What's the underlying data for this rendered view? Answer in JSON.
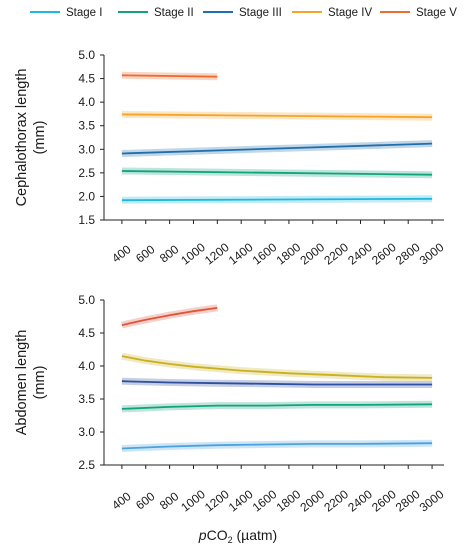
{
  "legend": [
    {
      "label": "Stage I",
      "color": "#1fb7e0"
    },
    {
      "label": "Stage II",
      "color": "#12a37d"
    },
    {
      "label": "Stage III",
      "color": "#1f6fae"
    },
    {
      "label": "Stage IV",
      "color": "#f4a428"
    },
    {
      "label": "Stage V",
      "color": "#ee6a2f"
    }
  ],
  "x_axis": {
    "label_prefix": "p",
    "label_main": "CO",
    "label_sub": "2",
    "label_unit": " (µatm)"
  },
  "chart_data": [
    {
      "type": "line",
      "ylabel": "Cephalothorax length (mm)",
      "ylabel_lines": [
        "Cephalothorax length",
        "(mm)"
      ],
      "ylim": [
        1.5,
        5.0
      ],
      "yticks": [
        "1.5",
        "2.0",
        "2.5",
        "3.0",
        "3.5",
        "4.0",
        "4.5",
        "5.0"
      ],
      "xlim": [
        250,
        3100
      ],
      "xticks": [
        "400",
        "600",
        "800",
        "1000",
        "1200",
        "1400",
        "1600",
        "1800",
        "2000",
        "2200",
        "2400",
        "2600",
        "2800",
        "3000"
      ],
      "series": [
        {
          "name": "Stage I",
          "color": "#1fb7e0",
          "x": [
            400,
            3000
          ],
          "y": [
            1.92,
            1.95
          ]
        },
        {
          "name": "Stage II",
          "color": "#12a37d",
          "x": [
            400,
            3000
          ],
          "y": [
            2.54,
            2.46
          ]
        },
        {
          "name": "Stage III",
          "color": "#1f6fae",
          "x": [
            400,
            3000
          ],
          "y": [
            2.91,
            3.12
          ]
        },
        {
          "name": "Stage IV",
          "color": "#f4a428",
          "x": [
            400,
            3000
          ],
          "y": [
            3.74,
            3.68
          ]
        },
        {
          "name": "Stage V",
          "color": "#ee6a2f",
          "x": [
            400,
            1200
          ],
          "y": [
            4.57,
            4.54
          ]
        }
      ]
    },
    {
      "type": "line",
      "ylabel": "Abdomen length (mm)",
      "ylabel_lines": [
        "Abdomen length",
        "(mm)"
      ],
      "ylim": [
        2.5,
        5.0
      ],
      "yticks": [
        "2.5",
        "3.0",
        "3.5",
        "4.0",
        "4.5",
        "5.0"
      ],
      "xlim": [
        250,
        3100
      ],
      "xticks": [
        "400",
        "600",
        "800",
        "1000",
        "1200",
        "1400",
        "1600",
        "1800",
        "2000",
        "2200",
        "2400",
        "2600",
        "2800",
        "3000"
      ],
      "series": [
        {
          "name": "Stage I",
          "color": "#4aa3df",
          "x": [
            400,
            800,
            1200,
            1600,
            2000,
            2400,
            3000
          ],
          "y": [
            2.75,
            2.78,
            2.8,
            2.81,
            2.82,
            2.82,
            2.83
          ]
        },
        {
          "name": "Stage II",
          "color": "#12a37d",
          "x": [
            400,
            800,
            1200,
            1600,
            2000,
            2400,
            3000
          ],
          "y": [
            3.35,
            3.38,
            3.4,
            3.4,
            3.41,
            3.41,
            3.42
          ]
        },
        {
          "name": "Stage III",
          "color": "#2d4f9e",
          "x": [
            400,
            800,
            1200,
            1600,
            2000,
            2400,
            3000
          ],
          "y": [
            3.77,
            3.75,
            3.74,
            3.73,
            3.72,
            3.72,
            3.72
          ]
        },
        {
          "name": "Stage IV",
          "color": "#c8b020",
          "x": [
            400,
            600,
            800,
            1000,
            1400,
            1800,
            2200,
            2600,
            3000
          ],
          "y": [
            4.15,
            4.08,
            4.03,
            3.99,
            3.93,
            3.89,
            3.86,
            3.83,
            3.82
          ]
        },
        {
          "name": "Stage V",
          "color": "#e0553a",
          "x": [
            400,
            600,
            800,
            1000,
            1200
          ],
          "y": [
            4.62,
            4.7,
            4.77,
            4.83,
            4.88
          ]
        }
      ]
    }
  ]
}
